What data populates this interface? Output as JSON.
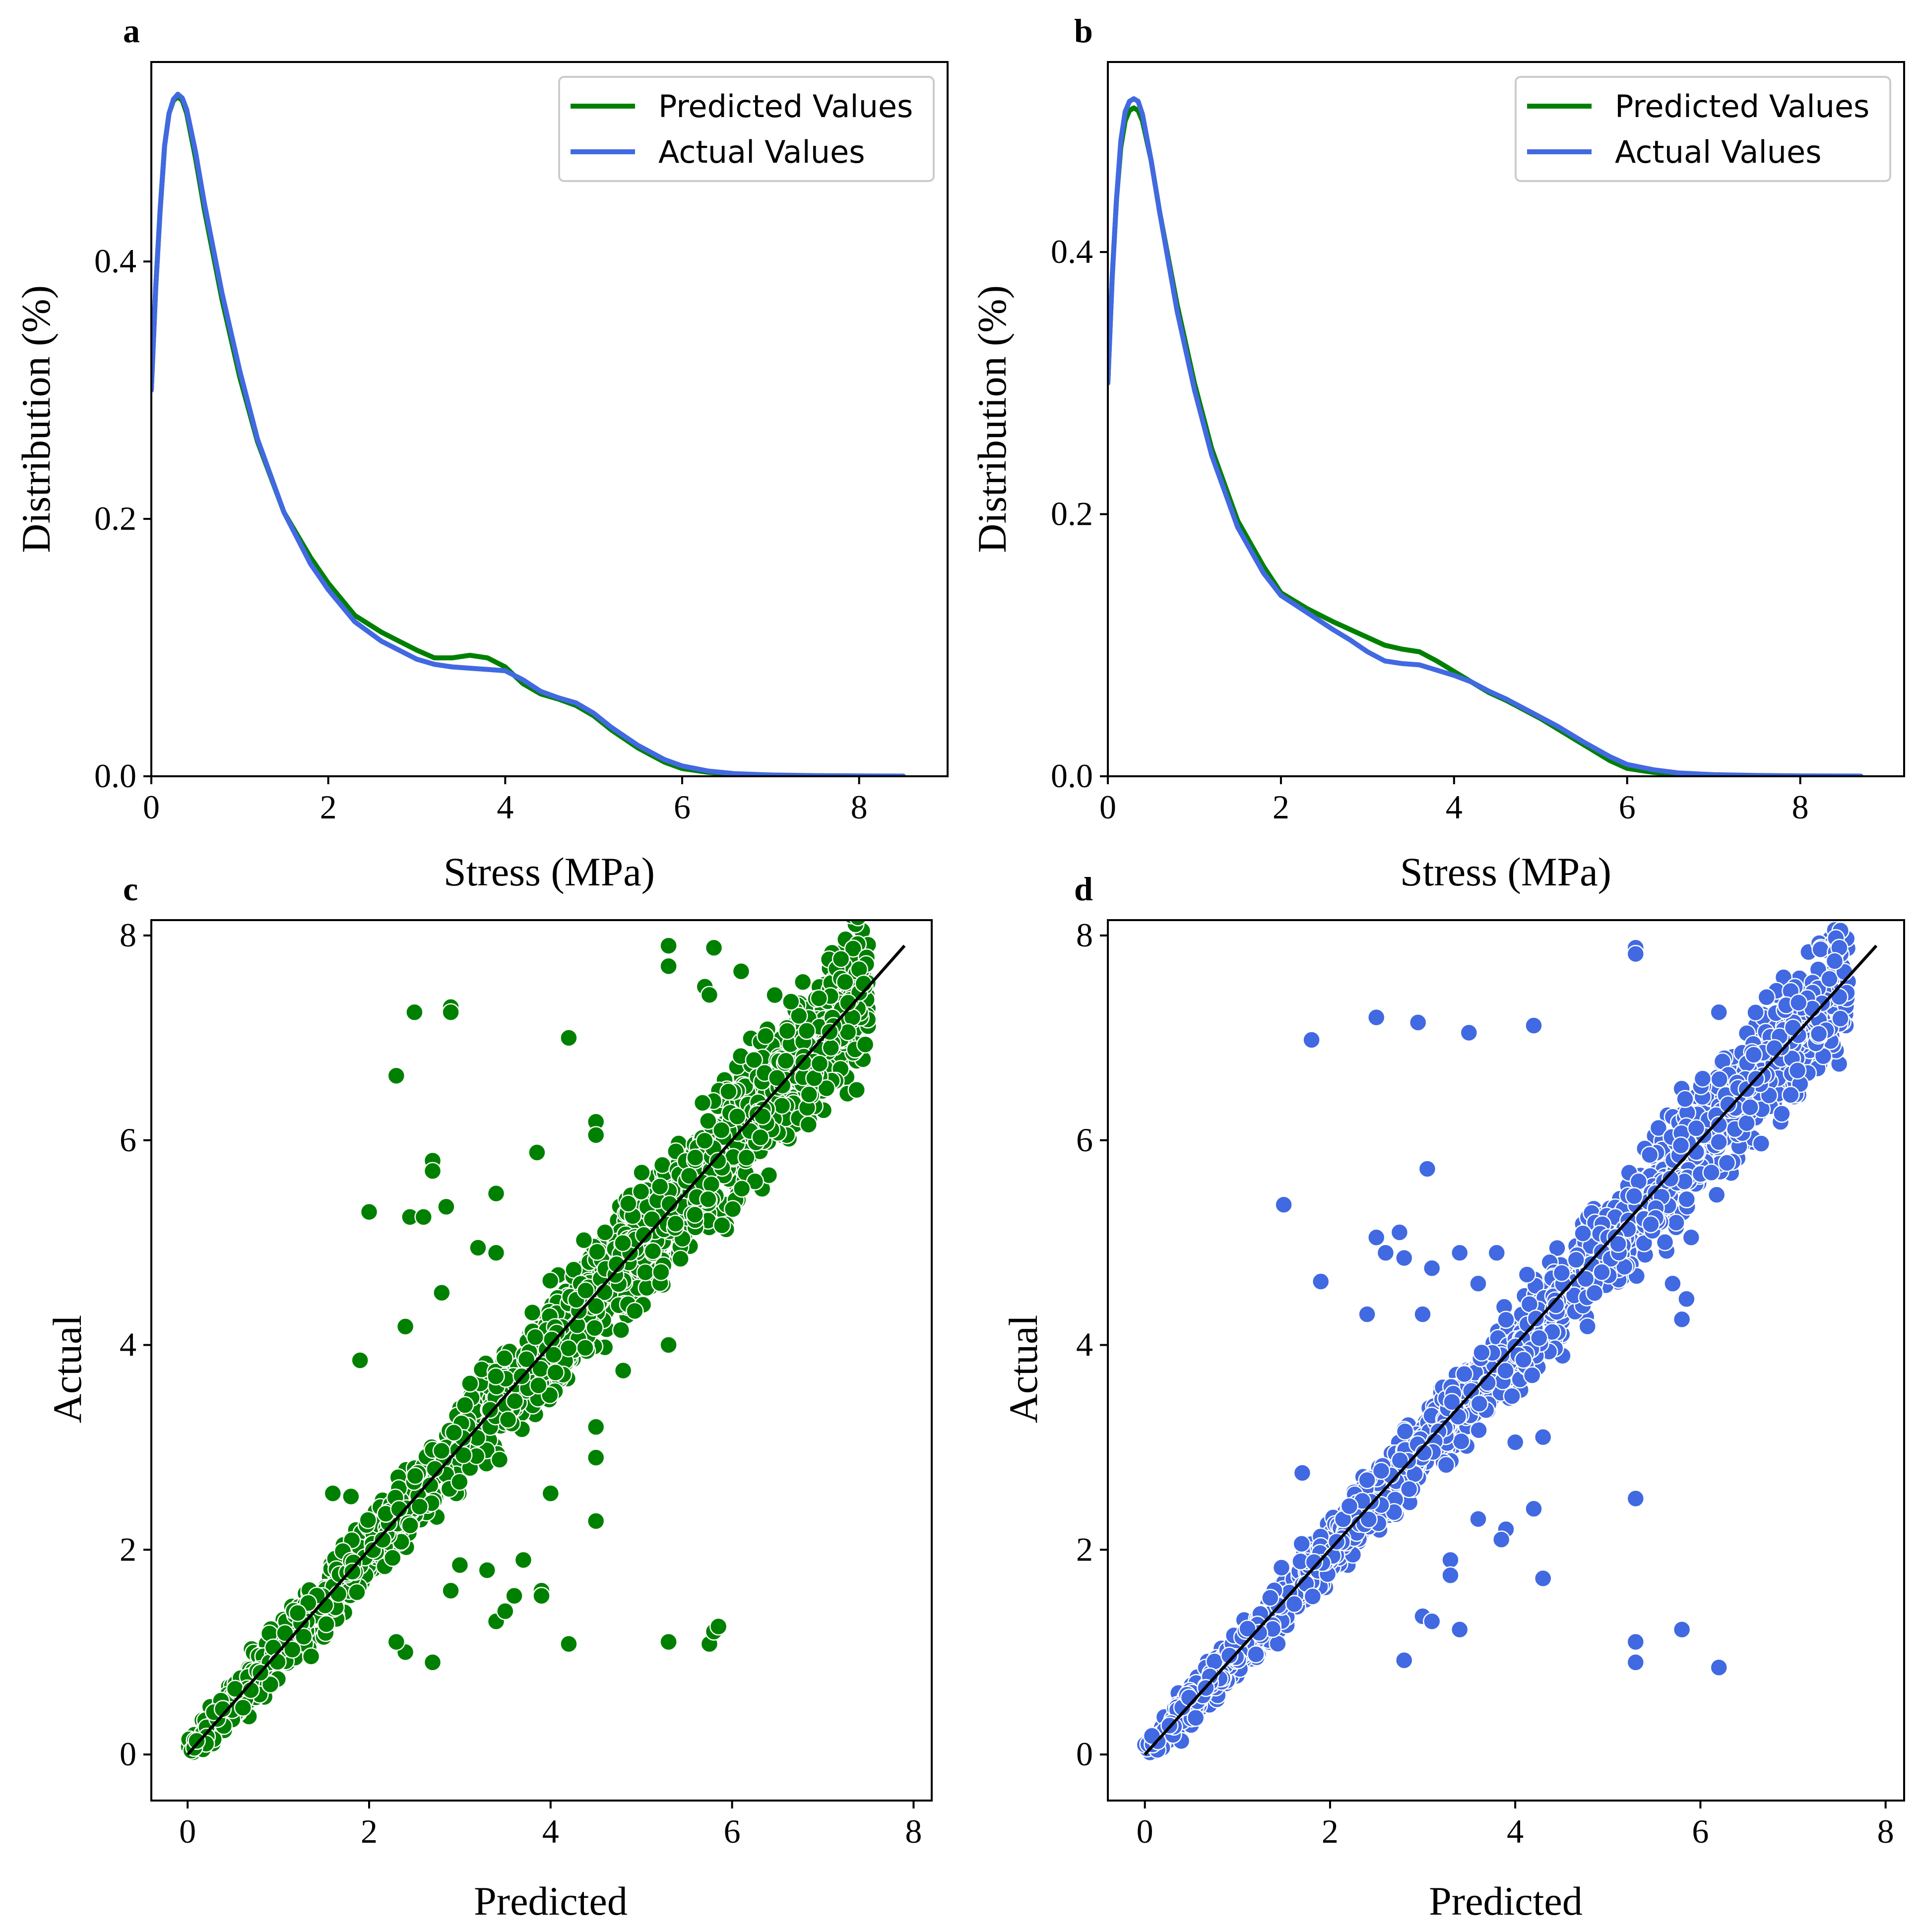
{
  "chart_data": [
    {
      "panel_label": "a",
      "type": "line",
      "title": "",
      "xlabel": "Stress (MPa)",
      "ylabel": "Distribution (%)",
      "xlim": [
        0,
        9
      ],
      "ylim": [
        0,
        0.555
      ],
      "xticks": [
        0,
        2,
        4,
        6,
        8
      ],
      "xtick_labels": [
        "0",
        "2",
        "4",
        "6",
        "8"
      ],
      "yticks": [
        0,
        0.2,
        0.4
      ],
      "ytick_labels": [
        "0.0",
        "0.2",
        "0.4"
      ],
      "legend_position": "top-right",
      "series": [
        {
          "name": "Predicted Values",
          "color": "#008000",
          "x": [
            0,
            0.05,
            0.1,
            0.15,
            0.2,
            0.25,
            0.3,
            0.35,
            0.4,
            0.5,
            0.6,
            0.8,
            1.0,
            1.2,
            1.5,
            1.8,
            2.0,
            2.3,
            2.6,
            2.8,
            3.0,
            3.2,
            3.4,
            3.6,
            3.8,
            4.0,
            4.2,
            4.4,
            4.6,
            4.8,
            5.0,
            5.2,
            5.5,
            5.8,
            6.0,
            6.3,
            6.6,
            7.0,
            7.5,
            8.0,
            8.5
          ],
          "y": [
            0.3,
            0.38,
            0.44,
            0.49,
            0.515,
            0.525,
            0.528,
            0.525,
            0.515,
            0.48,
            0.44,
            0.37,
            0.31,
            0.26,
            0.205,
            0.17,
            0.15,
            0.125,
            0.112,
            0.105,
            0.098,
            0.092,
            0.092,
            0.094,
            0.092,
            0.085,
            0.072,
            0.064,
            0.06,
            0.055,
            0.047,
            0.036,
            0.022,
            0.011,
            0.006,
            0.003,
            0.0015,
            0.0008,
            0.0004,
            0.0002,
            0.0001
          ]
        },
        {
          "name": "Actual Values",
          "color": "#4169e1",
          "x": [
            0,
            0.05,
            0.1,
            0.15,
            0.2,
            0.25,
            0.3,
            0.35,
            0.4,
            0.5,
            0.6,
            0.8,
            1.0,
            1.2,
            1.5,
            1.8,
            2.0,
            2.3,
            2.6,
            2.8,
            3.0,
            3.2,
            3.4,
            3.6,
            3.8,
            4.0,
            4.2,
            4.4,
            4.6,
            4.8,
            5.0,
            5.2,
            5.5,
            5.8,
            6.0,
            6.3,
            6.6,
            7.0,
            7.5,
            8.0,
            8.5
          ],
          "y": [
            0.3,
            0.38,
            0.44,
            0.49,
            0.515,
            0.526,
            0.53,
            0.527,
            0.518,
            0.485,
            0.445,
            0.375,
            0.315,
            0.262,
            0.205,
            0.165,
            0.145,
            0.12,
            0.105,
            0.098,
            0.091,
            0.087,
            0.085,
            0.084,
            0.083,
            0.082,
            0.075,
            0.066,
            0.061,
            0.057,
            0.049,
            0.038,
            0.024,
            0.013,
            0.008,
            0.004,
            0.002,
            0.001,
            0.0005,
            0.0003,
            0.0001
          ]
        }
      ]
    },
    {
      "panel_label": "b",
      "type": "line",
      "title": "",
      "xlabel": "Stress (MPa)",
      "ylabel": "Distribution (%)",
      "xlim": [
        0,
        9.2
      ],
      "ylim": [
        0,
        0.545
      ],
      "xticks": [
        0,
        2,
        4,
        6,
        8
      ],
      "xtick_labels": [
        "0",
        "2",
        "4",
        "6",
        "8"
      ],
      "yticks": [
        0,
        0.2,
        0.4
      ],
      "ytick_labels": [
        "0.0",
        "0.2",
        "0.4"
      ],
      "legend_position": "top-right",
      "series": [
        {
          "name": "Predicted Values",
          "color": "#008000",
          "x": [
            0,
            0.05,
            0.1,
            0.15,
            0.2,
            0.25,
            0.3,
            0.35,
            0.4,
            0.5,
            0.6,
            0.8,
            1.0,
            1.2,
            1.5,
            1.8,
            2.0,
            2.3,
            2.6,
            2.8,
            3.0,
            3.2,
            3.4,
            3.6,
            3.8,
            4.0,
            4.2,
            4.4,
            4.6,
            4.8,
            5.0,
            5.2,
            5.5,
            5.8,
            6.0,
            6.3,
            6.6,
            7.0,
            7.5,
            8.0,
            8.7
          ],
          "y": [
            0.3,
            0.38,
            0.44,
            0.48,
            0.5,
            0.508,
            0.51,
            0.508,
            0.5,
            0.47,
            0.43,
            0.36,
            0.3,
            0.25,
            0.195,
            0.16,
            0.14,
            0.128,
            0.118,
            0.112,
            0.106,
            0.1,
            0.097,
            0.095,
            0.088,
            0.08,
            0.072,
            0.064,
            0.058,
            0.051,
            0.044,
            0.036,
            0.024,
            0.012,
            0.006,
            0.003,
            0.0015,
            0.0008,
            0.0004,
            0.0002,
            0.0001
          ]
        },
        {
          "name": "Actual Values",
          "color": "#4169e1",
          "x": [
            0,
            0.05,
            0.1,
            0.15,
            0.2,
            0.25,
            0.3,
            0.35,
            0.4,
            0.5,
            0.6,
            0.8,
            1.0,
            1.2,
            1.5,
            1.8,
            2.0,
            2.3,
            2.6,
            2.8,
            3.0,
            3.2,
            3.4,
            3.6,
            3.8,
            4.0,
            4.2,
            4.4,
            4.6,
            4.8,
            5.0,
            5.2,
            5.5,
            5.8,
            6.0,
            6.3,
            6.6,
            7.0,
            7.5,
            8.0,
            8.7
          ],
          "y": [
            0.3,
            0.38,
            0.44,
            0.485,
            0.507,
            0.515,
            0.517,
            0.515,
            0.505,
            0.47,
            0.43,
            0.355,
            0.295,
            0.245,
            0.19,
            0.155,
            0.138,
            0.125,
            0.112,
            0.104,
            0.095,
            0.088,
            0.086,
            0.085,
            0.081,
            0.077,
            0.072,
            0.065,
            0.059,
            0.052,
            0.045,
            0.038,
            0.026,
            0.015,
            0.009,
            0.005,
            0.0025,
            0.0012,
            0.0006,
            0.0003,
            0.0001
          ]
        }
      ]
    },
    {
      "panel_label": "c",
      "type": "scatter",
      "title": "",
      "xlabel": "Predicted",
      "ylabel": "Actual",
      "xlim": [
        -0.4,
        8.2
      ],
      "ylim": [
        -0.45,
        8.15
      ],
      "xticks": [
        0,
        2,
        4,
        6,
        8
      ],
      "xtick_labels": [
        "0",
        "2",
        "4",
        "6",
        "8"
      ],
      "yticks": [
        0,
        2,
        4,
        6,
        8
      ],
      "ytick_labels": [
        "0",
        "2",
        "4",
        "6",
        "8"
      ],
      "point_color": "#008000",
      "reference_line": {
        "x": [
          0,
          7.9
        ],
        "y": [
          0,
          7.9
        ],
        "color": "#000000"
      },
      "dense_cloud": {
        "x_min": 0,
        "x_max": 7.5,
        "count": 1800,
        "spread": 0.22,
        "seed": 11
      },
      "outliers": [
        [
          2.5,
          7.25
        ],
        [
          2.9,
          7.3
        ],
        [
          2.9,
          7.25
        ],
        [
          2.3,
          6.63
        ],
        [
          4.2,
          7.0
        ],
        [
          5.3,
          7.9
        ],
        [
          5.3,
          7.7
        ],
        [
          5.8,
          7.88
        ],
        [
          5.7,
          7.5
        ],
        [
          5.75,
          7.42
        ],
        [
          6.1,
          7.65
        ],
        [
          7.2,
          7.77
        ],
        [
          7.4,
          7.67
        ],
        [
          7.45,
          7.53
        ],
        [
          2.0,
          5.3
        ],
        [
          2.45,
          5.25
        ],
        [
          2.6,
          5.25
        ],
        [
          2.7,
          5.8
        ],
        [
          2.7,
          5.7
        ],
        [
          2.85,
          5.35
        ],
        [
          3.4,
          5.48
        ],
        [
          3.85,
          5.88
        ],
        [
          4.5,
          6.18
        ],
        [
          4.5,
          6.05
        ],
        [
          1.9,
          3.85
        ],
        [
          2.4,
          4.18
        ],
        [
          2.8,
          4.51
        ],
        [
          3.2,
          4.95
        ],
        [
          3.4,
          4.9
        ],
        [
          4.5,
          4.38
        ],
        [
          4.8,
          3.75
        ],
        [
          5.3,
          4.0
        ],
        [
          4.5,
          3.2
        ],
        [
          4.5,
          2.9
        ],
        [
          4.5,
          2.28
        ],
        [
          4.0,
          2.55
        ],
        [
          3.9,
          1.6
        ],
        [
          3.9,
          1.55
        ],
        [
          4.2,
          1.08
        ],
        [
          5.3,
          1.1
        ],
        [
          5.75,
          1.08
        ],
        [
          5.8,
          1.2
        ],
        [
          5.85,
          1.25
        ],
        [
          3.4,
          1.3
        ],
        [
          3.5,
          1.4
        ],
        [
          2.4,
          1.0
        ],
        [
          2.7,
          0.9
        ],
        [
          2.3,
          1.1
        ],
        [
          1.6,
          2.55
        ],
        [
          1.8,
          2.52
        ],
        [
          3.3,
          1.8
        ],
        [
          2.9,
          1.6
        ],
        [
          3.0,
          1.85
        ],
        [
          3.7,
          1.9
        ],
        [
          3.6,
          1.55
        ],
        [
          4.6,
          5.1
        ]
      ]
    },
    {
      "panel_label": "d",
      "type": "scatter",
      "title": "",
      "xlabel": "Predicted",
      "ylabel": "Actual",
      "xlim": [
        -0.4,
        8.2
      ],
      "ylim": [
        -0.45,
        8.15
      ],
      "xticks": [
        0,
        2,
        4,
        6,
        8
      ],
      "xtick_labels": [
        "0",
        "2",
        "4",
        "6",
        "8"
      ],
      "yticks": [
        0,
        2,
        4,
        6,
        8
      ],
      "ytick_labels": [
        "0",
        "2",
        "4",
        "6",
        "8"
      ],
      "point_color": "#4169e1",
      "reference_line": {
        "x": [
          0,
          7.9
        ],
        "y": [
          0,
          7.9
        ],
        "color": "#000000"
      },
      "dense_cloud": {
        "x_min": 0,
        "x_max": 7.6,
        "count": 1800,
        "spread": 0.2,
        "seed": 23
      },
      "outliers": [
        [
          1.8,
          6.98
        ],
        [
          2.5,
          7.2
        ],
        [
          2.95,
          7.15
        ],
        [
          3.5,
          7.05
        ],
        [
          4.2,
          7.12
        ],
        [
          5.3,
          7.88
        ],
        [
          5.3,
          7.82
        ],
        [
          6.2,
          7.25
        ],
        [
          7.5,
          7.88
        ],
        [
          7.45,
          7.75
        ],
        [
          7.5,
          7.4
        ],
        [
          1.5,
          5.37
        ],
        [
          1.9,
          4.62
        ],
        [
          3.05,
          5.72
        ],
        [
          2.5,
          5.05
        ],
        [
          2.75,
          5.1
        ],
        [
          2.6,
          4.9
        ],
        [
          2.8,
          4.85
        ],
        [
          3.1,
          4.75
        ],
        [
          3.4,
          4.9
        ],
        [
          3.6,
          4.6
        ],
        [
          3.8,
          4.9
        ],
        [
          3.0,
          4.3
        ],
        [
          2.4,
          4.3
        ],
        [
          1.7,
          2.75
        ],
        [
          2.4,
          2.68
        ],
        [
          4.3,
          3.1
        ],
        [
          4.0,
          3.05
        ],
        [
          3.6,
          2.3
        ],
        [
          3.9,
          2.2
        ],
        [
          3.85,
          2.1
        ],
        [
          4.2,
          2.4
        ],
        [
          4.3,
          1.72
        ],
        [
          2.8,
          0.92
        ],
        [
          3.0,
          1.35
        ],
        [
          3.1,
          1.3
        ],
        [
          3.4,
          1.22
        ],
        [
          5.3,
          2.5
        ],
        [
          5.3,
          1.1
        ],
        [
          5.3,
          0.9
        ],
        [
          5.8,
          1.22
        ],
        [
          6.2,
          0.85
        ],
        [
          3.3,
          1.9
        ],
        [
          3.3,
          1.75
        ],
        [
          5.8,
          4.25
        ],
        [
          5.85,
          4.45
        ],
        [
          5.7,
          4.6
        ],
        [
          5.9,
          5.05
        ],
        [
          6.3,
          6.35
        ],
        [
          6.5,
          6.5
        ],
        [
          6.8,
          6.9
        ],
        [
          7.0,
          7.1
        ],
        [
          6.2,
          6.15
        ],
        [
          6.6,
          6.6
        ]
      ]
    }
  ]
}
